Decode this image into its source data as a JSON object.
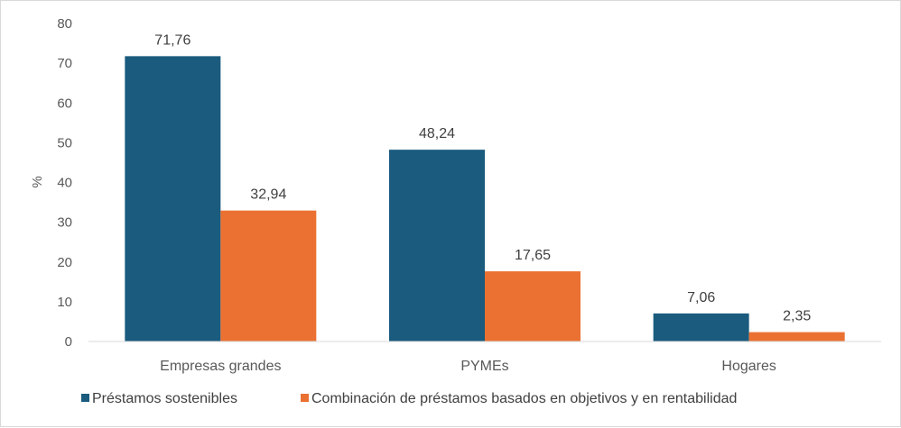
{
  "chart_data": {
    "type": "bar",
    "title": "",
    "xlabel": "",
    "ylabel": "%",
    "ylim": [
      0,
      80
    ],
    "yticks": [
      0,
      10,
      20,
      30,
      40,
      50,
      60,
      70,
      80
    ],
    "categories": [
      "Empresas grandes",
      "PYMEs",
      "Hogares"
    ],
    "series": [
      {
        "name": "Préstamos sostenibles",
        "color": "#1a5b7e",
        "values": [
          71.76,
          48.24,
          7.06
        ],
        "labels": [
          "71,76",
          "48,24",
          "7,06"
        ]
      },
      {
        "name": "Combinación de préstamos basados en objetivos y en rentabilidad",
        "color": "#ea7132",
        "values": [
          32.94,
          17.65,
          2.35
        ],
        "labels": [
          "32,94",
          "17,65",
          "2,35"
        ]
      }
    ],
    "legend_position": "bottom-center",
    "grid": false
  }
}
